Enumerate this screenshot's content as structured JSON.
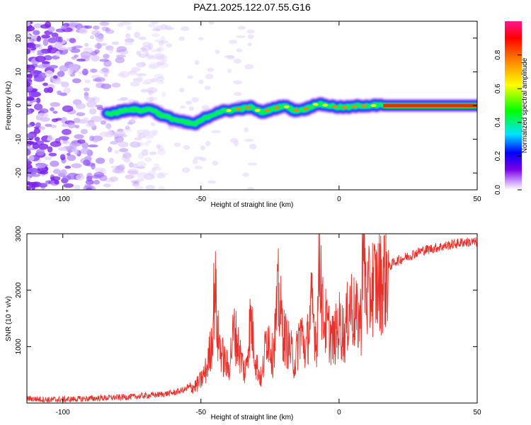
{
  "title": "PAZ1.2025.122.07.55.G16",
  "chart_data": [
    {
      "type": "heatmap",
      "title": "PAZ1.2025.122.07.55.G16",
      "xlabel": "Height of straight line (km)",
      "ylabel": "Frequency (Hz)",
      "xlim": [
        -113,
        50
      ],
      "ylim": [
        -25,
        25
      ],
      "x_ticks": [
        -100,
        -50,
        0,
        50
      ],
      "y_ticks": [
        -20,
        -10,
        0,
        10,
        20
      ],
      "colorbar": {
        "label": "Normalized spectral amplitude",
        "range": [
          0,
          1
        ],
        "ticks": [
          0.0,
          0.2,
          0.4,
          0.6,
          0.8
        ],
        "tick_labels": [
          "0.0",
          "0.2",
          "0.4",
          "0.6",
          "0.8"
        ],
        "colormap": [
          "#ffffff",
          "#cc99ff",
          "#7a00e6",
          "#0000ff",
          "#00e5ff",
          "#00ff00",
          "#ffff00",
          "#ff8000",
          "#ff0000",
          "#ff1493"
        ]
      },
      "ridge": {
        "x": [
          -84,
          -80,
          -76,
          -72,
          -68,
          -64,
          -60,
          -56,
          -52,
          -48,
          -44,
          -40,
          -36,
          -32,
          -28,
          -24,
          -20,
          -16,
          -12,
          -8,
          -4,
          0,
          4,
          8,
          12,
          16,
          20,
          30,
          40,
          50
        ],
        "y": [
          -2.5,
          -2,
          -1,
          -1.5,
          -1,
          -3,
          -4,
          -5,
          -5.5,
          -3.5,
          -2,
          -1.5,
          -1,
          -0.5,
          -2,
          -1,
          0,
          -1.5,
          -1,
          0.5,
          0,
          -0.5,
          -0.5,
          0,
          0,
          0,
          0,
          0,
          0,
          0
        ]
      },
      "grid": false
    },
    {
      "type": "line",
      "xlabel": "Height of straight line (km)",
      "ylabel": "SNR (10 * v/v)",
      "xlim": [
        -113,
        50
      ],
      "ylim": [
        0,
        3000
      ],
      "x_ticks": [
        -100,
        -50,
        0,
        50
      ],
      "y_ticks": [
        1000,
        2000,
        3000
      ],
      "color": "#e8312a",
      "series": [
        {
          "x": [
            -113,
            -105,
            -95,
            -85,
            -75,
            -65,
            -60,
            -55,
            -52,
            -50,
            -48,
            -46,
            -45,
            -44,
            -42,
            -40,
            -38,
            -36,
            -34,
            -32,
            -30,
            -28,
            -26,
            -24,
            -22,
            -20,
            -18,
            -16,
            -14,
            -12,
            -10,
            -8,
            -7,
            -6,
            -4,
            -2,
            0,
            2,
            4,
            6,
            8,
            8.5,
            10,
            12,
            14,
            16,
            18,
            20,
            25,
            30,
            35,
            40,
            45,
            50
          ],
          "y": [
            80,
            60,
            70,
            90,
            110,
            150,
            180,
            250,
            300,
            400,
            600,
            1100,
            2200,
            1200,
            800,
            600,
            1300,
            900,
            500,
            1500,
            700,
            400,
            1300,
            800,
            1900,
            1200,
            1000,
            700,
            1300,
            900,
            1700,
            1100,
            2900,
            1600,
            1300,
            1100,
            1400,
            1200,
            1800,
            1500,
            1500,
            3000,
            1800,
            2100,
            2100,
            2200,
            2400,
            2500,
            2600,
            2700,
            2750,
            2800,
            2850,
            2850
          ]
        }
      ],
      "grid": false
    }
  ]
}
